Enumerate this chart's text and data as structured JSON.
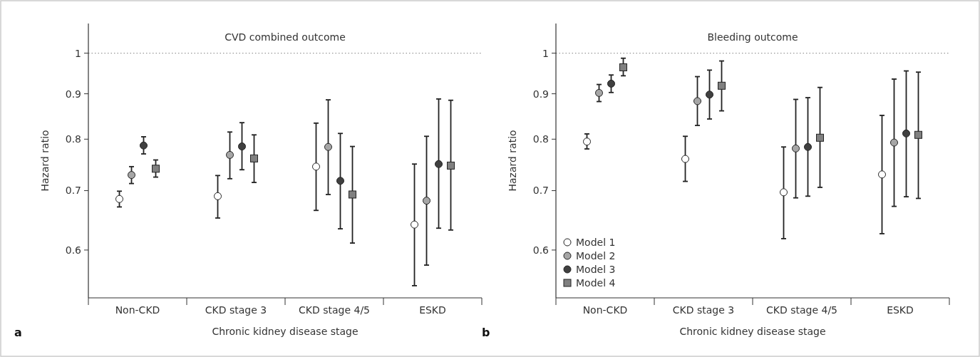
{
  "chart_data": [
    {
      "type": "scatter",
      "title": "CVD combined outcome",
      "xlabel": "Chronic kidney disease stage",
      "ylabel": "Hazard ratio",
      "annotations": [
        "a"
      ],
      "categories": [
        "Non-CKD",
        "CKD stage 3",
        "CKD stage 4/5",
        "ESKD"
      ],
      "log": "y",
      "ylim": [
        0.53,
        1.08
      ],
      "yticks": [
        0.6,
        0.7,
        0.8,
        0.9,
        1
      ],
      "grid": false,
      "legend": false,
      "ref_lines": [
        {
          "axis": "y",
          "value": 1,
          "line_style": "dotted",
          "color": "#999999"
        }
      ],
      "series": [
        {
          "color": "#ffffff",
          "marker": "circle",
          "values": [
            0.685,
            0.69,
            0.745,
            0.641
          ],
          "errors": [
            [
              0.671,
              0.699
            ],
            [
              0.652,
              0.728
            ],
            [
              0.665,
              0.834
            ],
            [
              0.547,
              0.75
            ]
          ]
        },
        {
          "color": "#a6a6a6",
          "marker": "circle",
          "values": [
            0.729,
            0.768,
            0.784,
            0.682
          ],
          "errors": [
            [
              0.713,
              0.745
            ],
            [
              0.722,
              0.815
            ],
            [
              0.693,
              0.886
            ],
            [
              0.577,
              0.806
            ]
          ]
        },
        {
          "color": "#404040",
          "marker": "circle",
          "values": [
            0.787,
            0.785,
            0.718,
            0.75
          ],
          "errors": [
            [
              0.77,
              0.805
            ],
            [
              0.739,
              0.835
            ],
            [
              0.634,
              0.812
            ],
            [
              0.635,
              0.888
            ]
          ]
        },
        {
          "color": "#808080",
          "marker": "square",
          "values": [
            0.741,
            0.761,
            0.693,
            0.747
          ],
          "errors": [
            [
              0.725,
              0.758
            ],
            [
              0.715,
              0.809
            ],
            [
              0.611,
              0.785
            ],
            [
              0.632,
              0.885
            ]
          ]
        }
      ]
    },
    {
      "type": "scatter",
      "title": "Bleeding outcome",
      "xlabel": "Chronic kidney disease stage",
      "ylabel": "Hazard ratio",
      "annotations": [
        "b"
      ],
      "categories": [
        "Non-CKD",
        "CKD stage 3",
        "CKD stage 4/5",
        "ESKD"
      ],
      "log": "y",
      "ylim": [
        0.53,
        1.08
      ],
      "yticks": [
        0.6,
        0.7,
        0.8,
        0.9,
        1
      ],
      "grid": false,
      "legend": "bottom left",
      "ref_lines": [
        {
          "axis": "y",
          "value": 1,
          "line_style": "dotted",
          "color": "#999999"
        }
      ],
      "series": [
        {
          "name": "Model 1",
          "color": "#ffffff",
          "marker": "circle",
          "values": [
            0.795,
            0.76,
            0.697,
            0.73
          ],
          "errors": [
            [
              0.78,
              0.811
            ],
            [
              0.717,
              0.806
            ],
            [
              0.618,
              0.784
            ],
            [
              0.626,
              0.851
            ]
          ]
        },
        {
          "name": "Model 2",
          "color": "#a6a6a6",
          "marker": "circle",
          "values": [
            0.902,
            0.883,
            0.781,
            0.793
          ],
          "errors": [
            [
              0.882,
              0.922
            ],
            [
              0.829,
              0.941
            ],
            [
              0.687,
              0.887
            ],
            [
              0.672,
              0.935
            ]
          ]
        },
        {
          "name": "Model 3",
          "color": "#404040",
          "marker": "circle",
          "values": [
            0.924,
            0.898,
            0.784,
            0.812
          ],
          "errors": [
            [
              0.903,
              0.945
            ],
            [
              0.843,
              0.957
            ],
            [
              0.69,
              0.891
            ],
            [
              0.689,
              0.955
            ]
          ]
        },
        {
          "name": "Model 4",
          "color": "#808080",
          "marker": "square",
          "values": [
            0.964,
            0.919,
            0.803,
            0.809
          ],
          "errors": [
            [
              0.943,
              0.987
            ],
            [
              0.861,
              0.98
            ],
            [
              0.706,
              0.915
            ],
            [
              0.686,
              0.952
            ]
          ]
        }
      ]
    }
  ]
}
